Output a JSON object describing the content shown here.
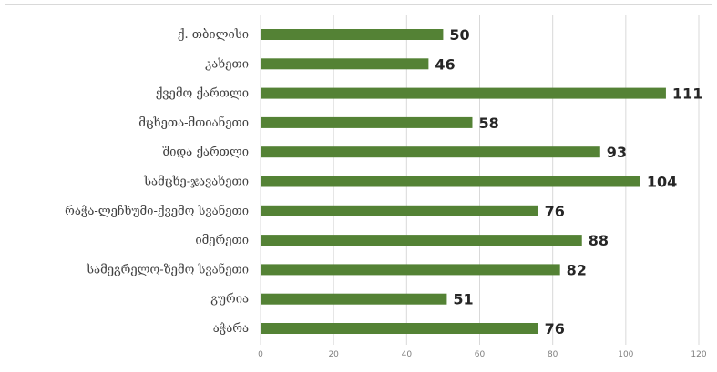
{
  "chart_data": {
    "type": "bar",
    "orientation": "horizontal",
    "title": "",
    "xlabel": "",
    "ylabel": "",
    "categories": [
      "ქ. თბილისი",
      "კახეთი",
      "ქვემო ქართლი",
      "მცხეთა-მთიანეთი",
      "შიდა ქართლი",
      "სამცხე-ჯავახეთი",
      "რაჭა-ლეჩხუმი-ქვემო სვანეთი",
      "იმერეთი",
      "სამეგრელო-ზემო სვანეთი",
      "გურია",
      "აჭარა"
    ],
    "values": [
      50,
      46,
      111,
      58,
      93,
      104,
      76,
      88,
      82,
      51,
      76
    ],
    "xlim": [
      0,
      120
    ],
    "ticks": [
      0,
      20,
      40,
      60,
      80,
      100,
      120
    ],
    "grid": true,
    "bar_color": "#548235",
    "data_labels": true
  }
}
